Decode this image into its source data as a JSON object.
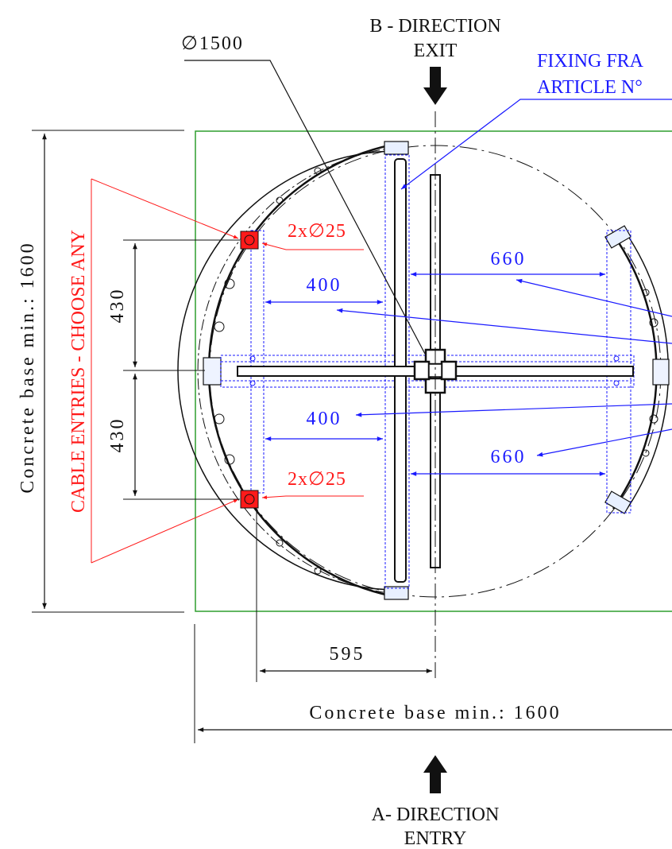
{
  "directions": {
    "exit": {
      "line1": "B - DIRECTION",
      "line2": "EXIT"
    },
    "entry": {
      "line1": "A- DIRECTION",
      "line2": "ENTRY"
    }
  },
  "fixing_frame": {
    "line1": "FIXING FRA",
    "line2": "ARTICLE N°"
  },
  "diameter_main": "∅1500",
  "cable_entries": {
    "title": "CABLE ENTRIES - CHOOSE ANY",
    "top_hole": "2x∅25",
    "bottom_hole": "2x∅25"
  },
  "dimensions": {
    "upper_660": "660",
    "lower_660": "660",
    "upper_400": "400",
    "lower_400": "400",
    "upper_430": "430",
    "lower_430": "430",
    "offset_595": "595",
    "base_vertical": "Concrete base min.: 1600",
    "base_horizontal": "Concrete base min.: 1600"
  },
  "colors": {
    "outline": "#111111",
    "dimension_blue": "#1a1aff",
    "cable_red": "#ff1a1a",
    "base_green": "#2e9e2e"
  }
}
